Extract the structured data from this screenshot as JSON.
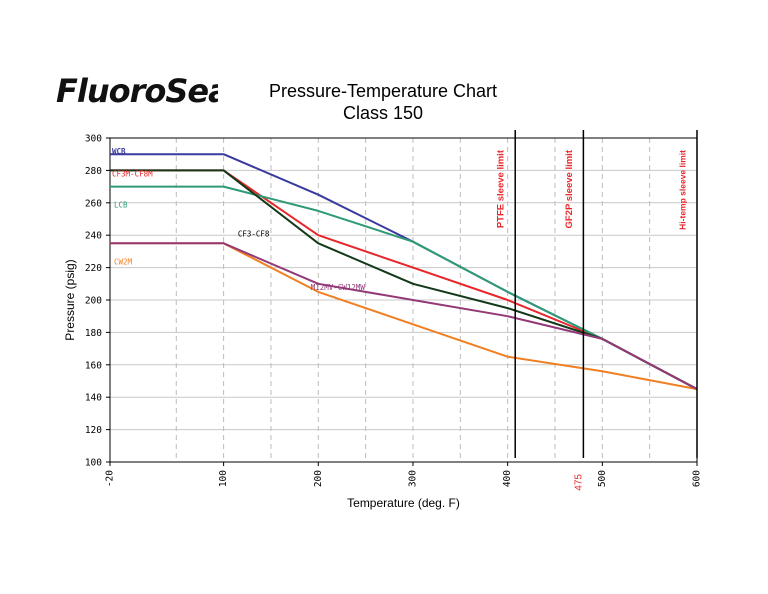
{
  "logo": {
    "text": "FluoroSeal",
    "color": "#111111"
  },
  "chart_data": {
    "type": "line",
    "title": "Pressure-Temperature Chart",
    "subtitle": "Class 150",
    "xlabel": "Temperature (deg. F)",
    "ylabel": "Pressure (psig)",
    "xlim": [
      -20,
      600
    ],
    "ylim": [
      100,
      300
    ],
    "xticks": [
      -20,
      100,
      200,
      300,
      400,
      500,
      600
    ],
    "x_extra_tick": {
      "value": 475,
      "label": "475",
      "color": "#e8262a"
    },
    "yticks": [
      100,
      120,
      140,
      160,
      180,
      200,
      220,
      240,
      260,
      280,
      300
    ],
    "grid": true,
    "series": [
      {
        "name": "WCB",
        "color": "#3a3a9e",
        "x": [
          -20,
          100,
          200,
          300,
          400,
          500,
          600
        ],
        "y": [
          290,
          290,
          265,
          236,
          205,
          176,
          145
        ]
      },
      {
        "name": "CF3M-CF8M",
        "color": "#e8262a",
        "x": [
          -20,
          100,
          200,
          300,
          400,
          500,
          600
        ],
        "y": [
          280,
          280,
          240,
          220,
          200,
          176,
          145
        ]
      },
      {
        "name": "LCB",
        "color": "#2e9b76",
        "x": [
          -20,
          100,
          200,
          300,
          400,
          500,
          600
        ],
        "y": [
          270,
          270,
          255,
          236,
          205,
          176,
          145
        ]
      },
      {
        "name": "CF3-CF8",
        "color": "#13391a",
        "x": [
          -20,
          100,
          200,
          300,
          400,
          500,
          600
        ],
        "y": [
          280,
          280,
          235,
          210,
          195,
          176,
          145
        ]
      },
      {
        "name": "CW2M",
        "color": "#f07f22",
        "x": [
          -20,
          100,
          200,
          300,
          400,
          500,
          600
        ],
        "y": [
          235,
          235,
          205,
          185,
          165,
          156,
          145
        ]
      },
      {
        "name": "M12MV-CW12MW",
        "color": "#943977",
        "x": [
          -20,
          100,
          200,
          300,
          400,
          500,
          600
        ],
        "y": [
          235,
          235,
          210,
          200,
          190,
          176,
          145
        ]
      }
    ],
    "vertical_lines": [
      {
        "x": 408,
        "label": "PTFE sleeve limit",
        "color": "#e8262a"
      },
      {
        "x": 480,
        "label": "GF2P sleeve limit",
        "color": "#e8262a"
      },
      {
        "x": 600,
        "label": "Hi-temp sleeve limit",
        "color": "#e8262a"
      }
    ]
  }
}
